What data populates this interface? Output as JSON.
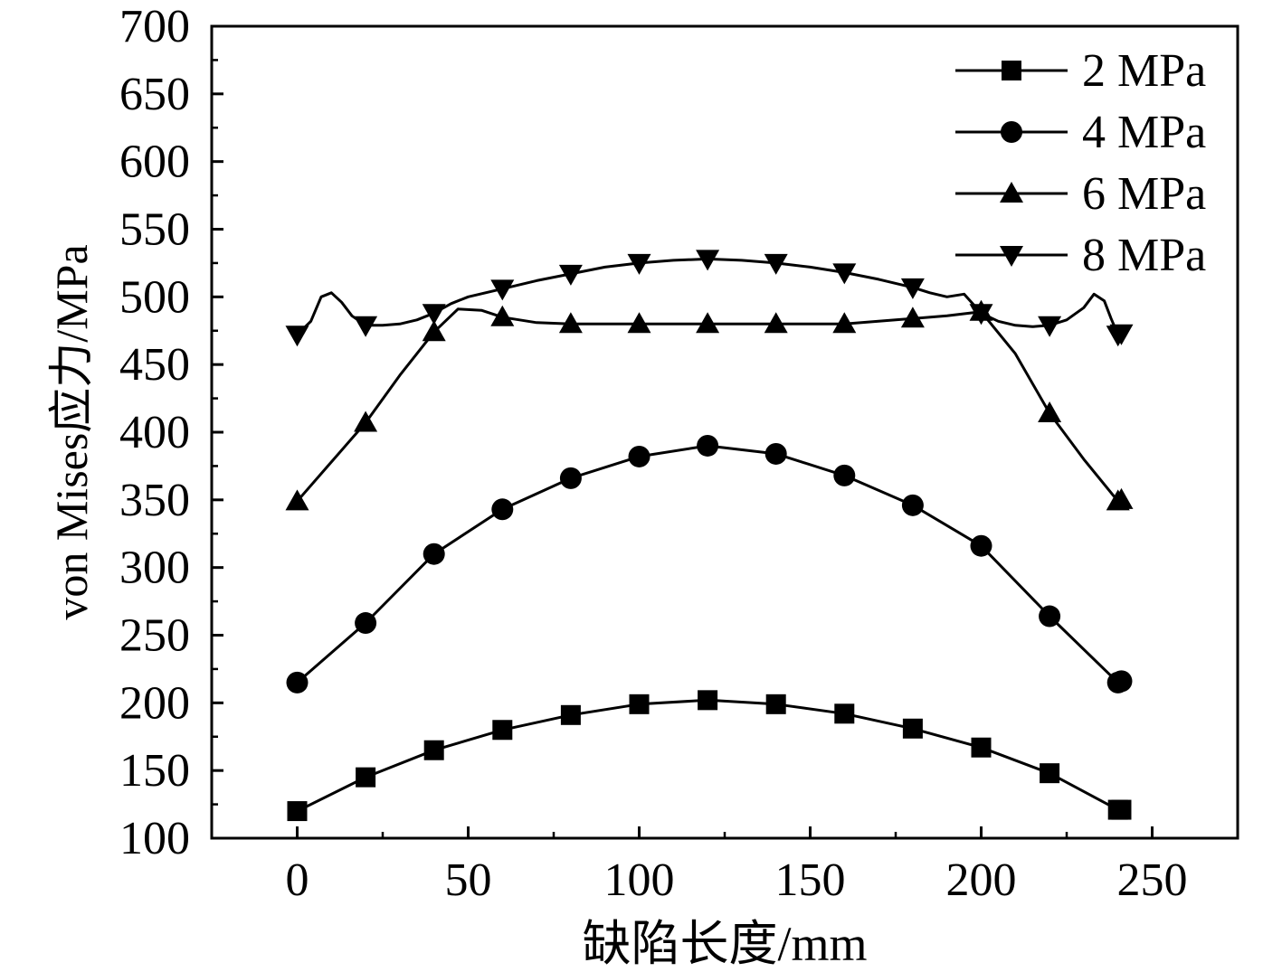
{
  "chart_data": {
    "type": "line",
    "xlabel": "缺陷长度/mm",
    "ylabel": "von Mises应力/MPa",
    "xlim": [
      -25,
      275
    ],
    "ylim": [
      100,
      700
    ],
    "x_ticks": [
      0,
      50,
      100,
      150,
      200,
      250
    ],
    "y_ticks": [
      100,
      150,
      200,
      250,
      300,
      350,
      400,
      450,
      500,
      550,
      600,
      650,
      700
    ],
    "x_tick_labels": [
      "0",
      "50",
      "100",
      "150",
      "200",
      "250"
    ],
    "y_tick_labels": [
      "100",
      "150",
      "200",
      "250",
      "300",
      "350",
      "400",
      "450",
      "500",
      "550",
      "600",
      "650",
      "700"
    ],
    "grid": false,
    "legend_position": "top-right",
    "series": [
      {
        "name": "2 MPa",
        "marker": "square",
        "markers_x": [
          0,
          20,
          40,
          60,
          80,
          100,
          120,
          140,
          160,
          180,
          200,
          220,
          240,
          241
        ],
        "markers_y": [
          120,
          145,
          165,
          180,
          191,
          199,
          202,
          199,
          192,
          181,
          167,
          148,
          121,
          121
        ],
        "line_x": [
          0,
          20,
          40,
          60,
          80,
          100,
          120,
          140,
          160,
          180,
          200,
          220,
          240,
          241
        ],
        "line_y": [
          120,
          145,
          165,
          180,
          191,
          199,
          202,
          199,
          192,
          181,
          167,
          148,
          121,
          121
        ]
      },
      {
        "name": "4 MPa",
        "marker": "circle",
        "markers_x": [
          0,
          20,
          40,
          60,
          80,
          100,
          120,
          140,
          160,
          180,
          200,
          220,
          240,
          241
        ],
        "markers_y": [
          215,
          259,
          310,
          343,
          366,
          382,
          390,
          384,
          368,
          346,
          316,
          264,
          215,
          216
        ],
        "line_x": [
          0,
          20,
          40,
          60,
          80,
          100,
          120,
          140,
          160,
          180,
          200,
          220,
          240,
          241
        ],
        "line_y": [
          215,
          259,
          310,
          343,
          366,
          382,
          390,
          384,
          368,
          346,
          316,
          264,
          215,
          216
        ]
      },
      {
        "name": "6 MPa",
        "marker": "triangle-up",
        "markers_x": [
          0,
          20,
          40,
          60,
          80,
          100,
          120,
          140,
          160,
          180,
          200,
          220,
          240,
          241
        ],
        "markers_y": [
          349,
          407,
          474,
          485,
          480,
          480,
          480,
          480,
          480,
          484,
          489,
          414,
          349,
          350
        ],
        "line_x": [
          0,
          10,
          20,
          30,
          40,
          47,
          54,
          60,
          70,
          80,
          100,
          120,
          140,
          160,
          180,
          190,
          200,
          210,
          220,
          230,
          240,
          241
        ],
        "line_y": [
          349,
          378,
          407,
          442,
          474,
          491,
          490,
          485,
          481,
          480,
          480,
          480,
          480,
          480,
          484,
          486,
          489,
          458,
          414,
          380,
          349,
          350
        ]
      },
      {
        "name": "8 MPa",
        "marker": "triangle-down",
        "markers_x": [
          0,
          20,
          40,
          60,
          80,
          100,
          120,
          140,
          160,
          180,
          200,
          220,
          240,
          241
        ],
        "markers_y": [
          472,
          479,
          488,
          506,
          517,
          525,
          528,
          525,
          518,
          507,
          488,
          479,
          472,
          473
        ],
        "line_x": [
          0,
          4,
          7,
          10,
          13,
          16,
          20,
          25,
          30,
          35,
          40,
          45,
          50,
          60,
          70,
          80,
          90,
          100,
          110,
          120,
          130,
          140,
          150,
          160,
          170,
          180,
          185,
          190,
          195,
          200,
          205,
          210,
          215,
          220,
          225,
          230,
          233,
          236,
          238,
          240,
          241
        ],
        "line_y": [
          472,
          482,
          500,
          503,
          496,
          486,
          479,
          479,
          480,
          483,
          488,
          495,
          500,
          506,
          512,
          517,
          522,
          525,
          527,
          528,
          527,
          525,
          522,
          518,
          513,
          507,
          503,
          500,
          502,
          488,
          482,
          479,
          478,
          479,
          483,
          492,
          502,
          497,
          484,
          472,
          473
        ]
      }
    ]
  }
}
